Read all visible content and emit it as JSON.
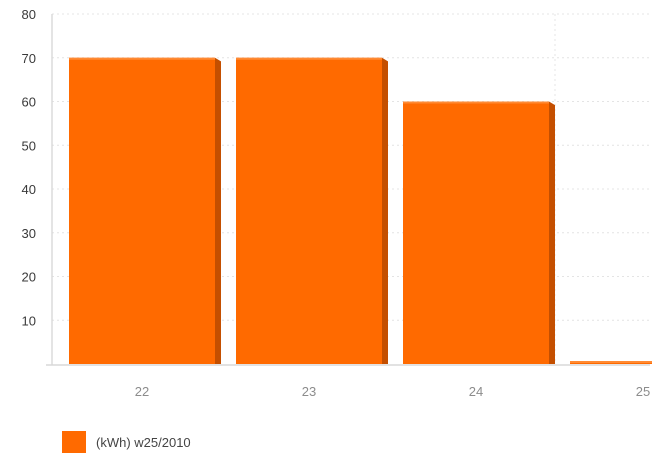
{
  "colors": {
    "bar": "#ff6a00",
    "bar_side": "#c44f00",
    "bar_top": "#ff8a33"
  },
  "chart_data": {
    "type": "bar",
    "categories": [
      "22",
      "23",
      "24",
      "25"
    ],
    "series": [
      {
        "name": "(kWh) w25/2010",
        "values": [
          70,
          70,
          60,
          0.5
        ]
      }
    ],
    "title": "",
    "xlabel": "",
    "ylabel": "",
    "ylim": [
      0,
      80
    ],
    "yticks": [
      10,
      20,
      30,
      40,
      50,
      60,
      70,
      80
    ],
    "grid": true,
    "legend": "bottom-left"
  }
}
